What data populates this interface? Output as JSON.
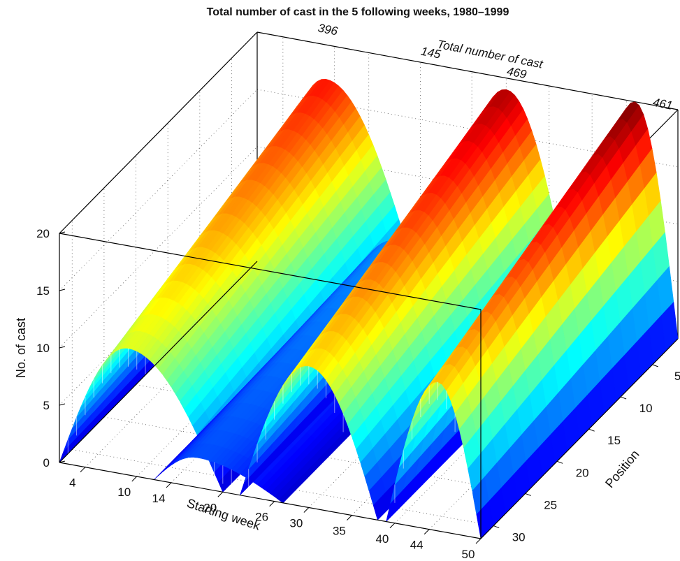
{
  "chart_data": {
    "type": "surface",
    "title": "Total number of cast in the 5 following weeks, 1980–1999",
    "xlabel": "Starting week",
    "ylabel": "Position",
    "zlabel": "No. of cast",
    "total_axis_label": "Total number of cast",
    "x_ticks": [
      "4",
      "10",
      "14",
      "20",
      "26",
      "30",
      "35",
      "40",
      "44",
      "50"
    ],
    "y_ticks": [
      "5",
      "10",
      "15",
      "20",
      "25",
      "30"
    ],
    "z_ticks": [
      "0",
      "5",
      "10",
      "15",
      "20"
    ],
    "xlim": [
      1,
      50
    ],
    "ylim": [
      1,
      32
    ],
    "zlim": [
      0,
      20
    ],
    "grid": true,
    "colormap": "jet",
    "totals": [
      {
        "label": "396",
        "starting_week": 8
      },
      {
        "label": "145",
        "starting_week": 20
      },
      {
        "label": "469",
        "starting_week": 30
      },
      {
        "label": "461",
        "starting_week": 47
      }
    ],
    "ridges": [
      {
        "starting_week_from": 1,
        "starting_week_to": 20,
        "peak_starting_week": 9,
        "peak_no_of_cast": 17
      },
      {
        "starting_week_from": 12,
        "starting_week_to": 27,
        "peak_starting_week": 17,
        "peak_no_of_cast": 4
      },
      {
        "starting_week_from": 22,
        "starting_week_to": 38,
        "peak_starting_week": 30,
        "peak_no_of_cast": 19
      },
      {
        "starting_week_from": 39,
        "starting_week_to": 50,
        "peak_starting_week": 45,
        "peak_no_of_cast": 20
      }
    ]
  }
}
